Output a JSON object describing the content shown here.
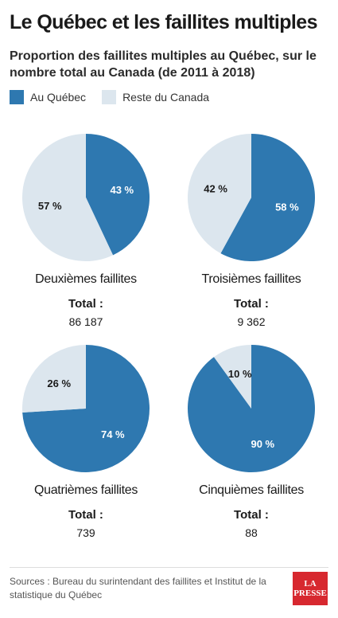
{
  "title": "Le Québec et les faillites multiples",
  "subtitle": "Proportion des faillites multiples au Québec, sur le nombre total au Canada (de 2011 à 2018)",
  "legend": {
    "quebec": "Au Québec",
    "rest": "Reste du Canada"
  },
  "colors": {
    "quebec": "#2e78b0",
    "rest": "#dce6ee"
  },
  "total_label": "Total :",
  "source": "Sources : Bureau du surintendant des faillites et Institut de la statistique du Québec",
  "logo": {
    "line1": "LA",
    "line2": "PRESSE"
  },
  "chart_data": [
    {
      "type": "pie",
      "title": "Deuxièmes faillites",
      "total": "86 187",
      "slices": [
        {
          "name": "Au Québec",
          "value": 43,
          "label": "43 %"
        },
        {
          "name": "Reste du Canada",
          "value": 57,
          "label": "57 %"
        }
      ]
    },
    {
      "type": "pie",
      "title": "Troisièmes faillites",
      "total": "9 362",
      "slices": [
        {
          "name": "Au Québec",
          "value": 58,
          "label": "58 %"
        },
        {
          "name": "Reste du Canada",
          "value": 42,
          "label": "42 %"
        }
      ]
    },
    {
      "type": "pie",
      "title": "Quatrièmes faillites",
      "total": "739",
      "slices": [
        {
          "name": "Au Québec",
          "value": 74,
          "label": "74 %"
        },
        {
          "name": "Reste du Canada",
          "value": 26,
          "label": "26 %"
        }
      ]
    },
    {
      "type": "pie",
      "title": "Cinquièmes faillites",
      "total": "88",
      "slices": [
        {
          "name": "Au Québec",
          "value": 90,
          "label": "90 %"
        },
        {
          "name": "Reste du Canada",
          "value": 10,
          "label": "10 %"
        }
      ]
    }
  ]
}
